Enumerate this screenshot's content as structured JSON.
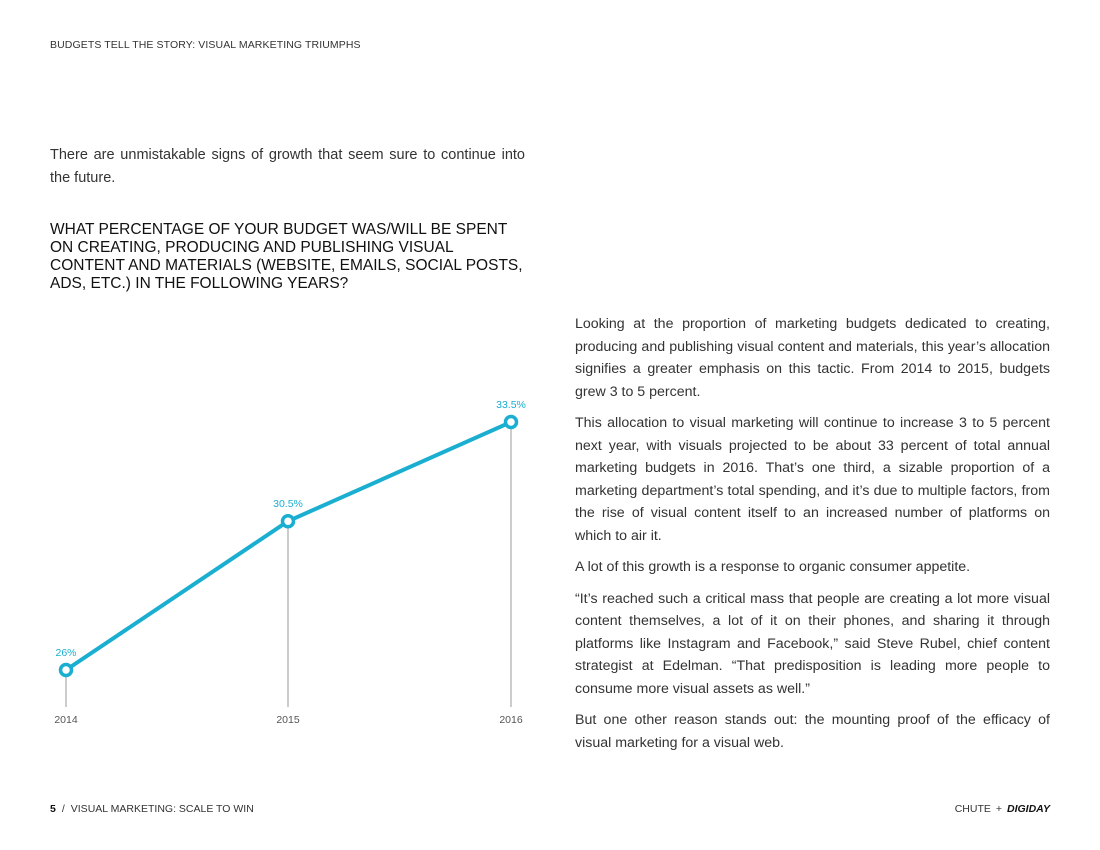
{
  "header": {
    "running_title": "BUDGETS TELL THE STORY: VISUAL MARKETING TRIUMPHS"
  },
  "intro": "There are unmistakable signs of growth that seem sure to continue into the future.",
  "question": "WHAT PERCENTAGE OF YOUR BUDGET WAS/WILL BE SPENT ON CREATING, PRODUCING AND PUBLISHING VISUAL CONTENT AND MATERIALS (WEBSITE, EMAILS, SOCIAL POSTS, ADS, ETC.) IN THE FOLLOWING YEARS?",
  "chart_data": {
    "type": "line",
    "categories": [
      "2014",
      "2015",
      "2016"
    ],
    "values": [
      26,
      30.5,
      33.5
    ],
    "data_labels": [
      "26%",
      "30.5%",
      "33.5%"
    ],
    "title": "",
    "xlabel": "",
    "ylabel": "",
    "grid": false,
    "colors": {
      "line": "#1aaed1",
      "label": "#1aaed1",
      "drop_line": "#9a9a9a",
      "axis_text": "#555555"
    }
  },
  "body": {
    "paragraphs": [
      "Looking at the proportion of marketing budgets dedicated to creating, producing and publishing visual content and materials, this year’s allocation signifies a greater emphasis on this tactic. From 2014 to 2015, budgets grew 3 to 5 percent.",
      "This allocation to visual marketing will continue to increase 3 to 5 percent next year, with visuals projected to be about 33 percent of total annual marketing budgets in 2016. That’s one third, a sizable proportion of a marketing department’s total spending, and it’s due to multiple factors, from the rise of visual content itself to an increased number of platforms on which to air it.",
      "A lot of this growth is a response to organic consumer appetite.",
      "“It’s reached such a critical mass that people are creating a lot more visual content themselves, a lot of it on their phones, and sharing it through platforms like Instagram and Facebook,” said Steve Rubel, chief content strategist at Edelman. “That predisposition is leading more people to consume more visual assets as well.”",
      "But one other reason stands out: the mounting proof of the efficacy of visual marketing for a visual web."
    ]
  },
  "footer": {
    "page_number": "5",
    "separator": "/",
    "publication": "VISUAL MARKETING: SCALE TO WIN",
    "brand_1": "CHUTE",
    "plus": "+",
    "brand_2": "DIGIDAY"
  }
}
